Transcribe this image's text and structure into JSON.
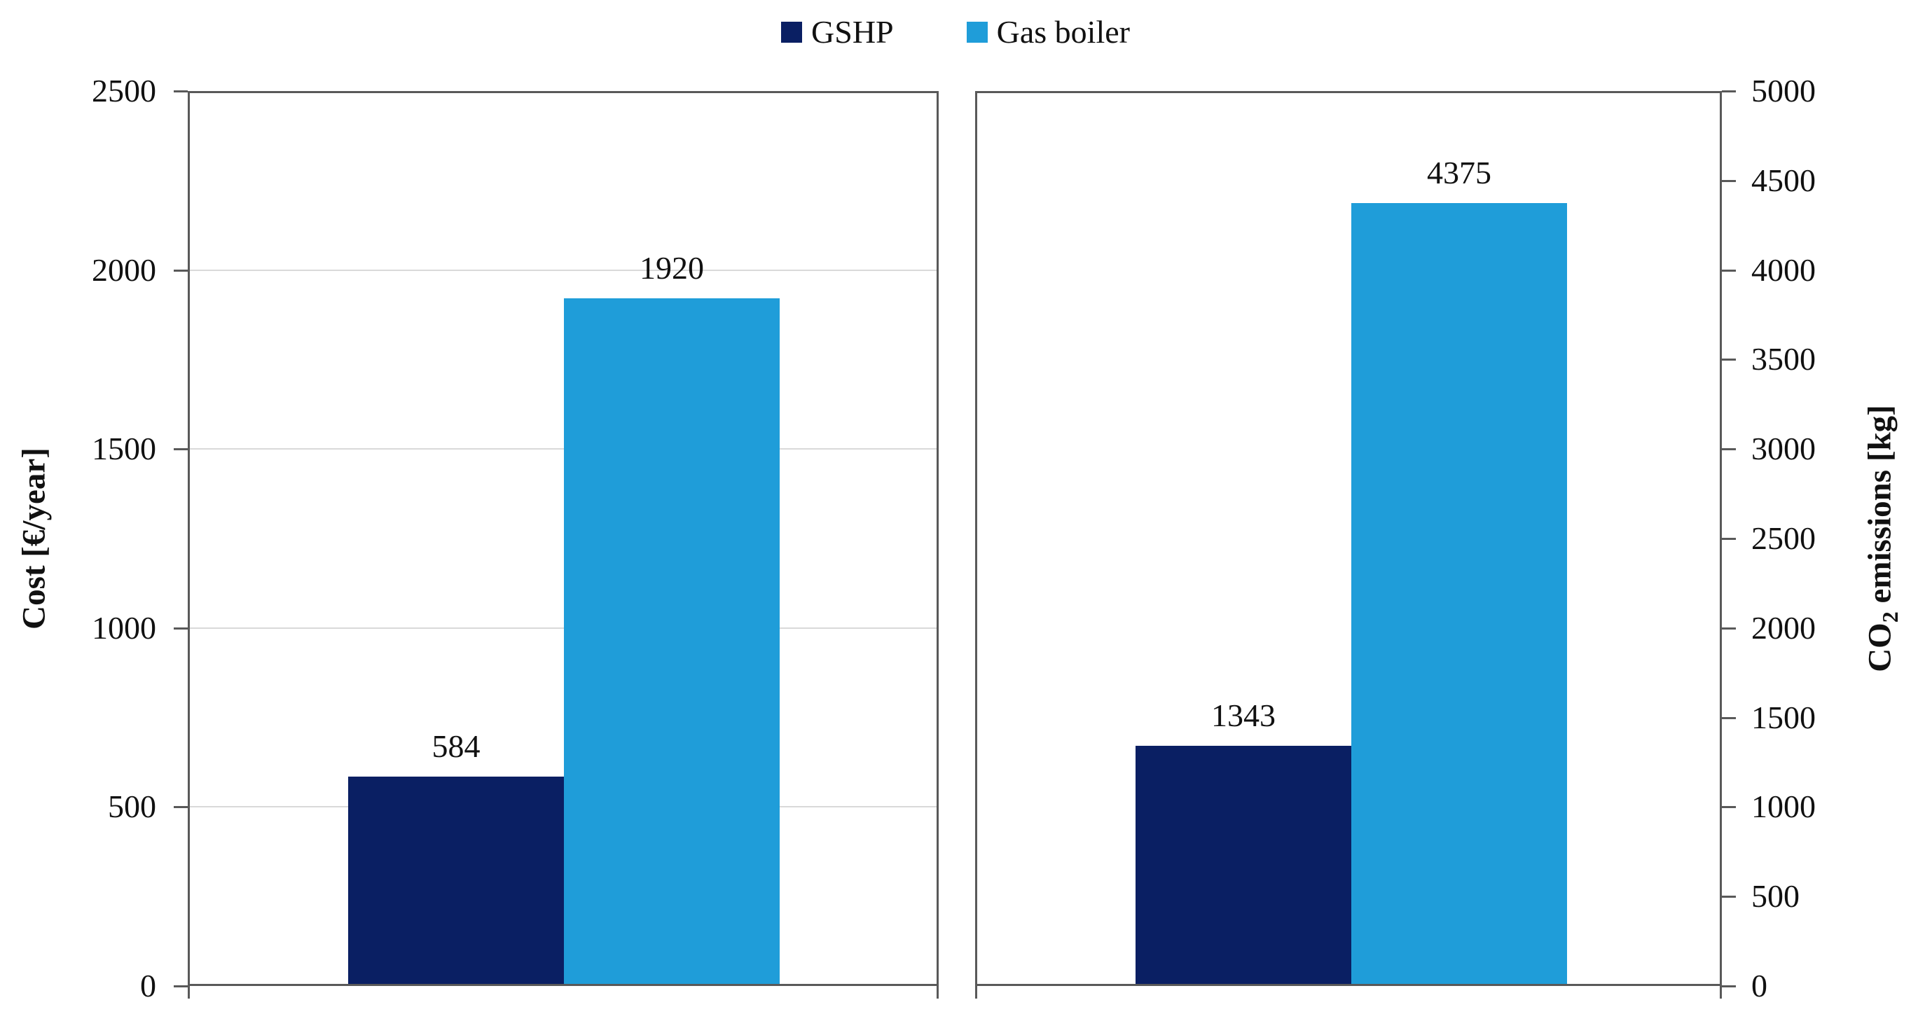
{
  "figure": {
    "background": "#ffffff",
    "text_color": "#111111",
    "axis_line_color": "#595959",
    "gridline_color": "#d9d9d9"
  },
  "chart_data": {
    "type": "bar",
    "legend": [
      {
        "name": "GSHP",
        "color": "#0A1F63"
      },
      {
        "name": "Gas boiler",
        "color": "#1F9DD9"
      }
    ],
    "legend_position": "top-center",
    "panels": [
      {
        "id": "cost",
        "ylabel": "Cost [€/year]",
        "axis_side": "left",
        "ymin": 0,
        "ymax": 2500,
        "ticks": [
          0,
          500,
          1000,
          1500,
          2000,
          2500
        ],
        "gridlines": true,
        "categories": [
          ""
        ],
        "series": [
          {
            "name": "GSHP",
            "value": 584
          },
          {
            "name": "Gas boiler",
            "value": 1920
          }
        ]
      },
      {
        "id": "co2",
        "ylabel_prefix": "CO",
        "ylabel_sub": "2",
        "ylabel_suffix": " emissions [kg]",
        "axis_side": "right",
        "ymin": 0,
        "ymax": 5000,
        "ticks": [
          0,
          500,
          1000,
          1500,
          2000,
          2500,
          3000,
          3500,
          4000,
          4500,
          5000
        ],
        "gridlines": false,
        "categories": [
          ""
        ],
        "series": [
          {
            "name": "GSHP",
            "value": 1343
          },
          {
            "name": "Gas boiler",
            "value": 4375
          }
        ]
      }
    ]
  }
}
